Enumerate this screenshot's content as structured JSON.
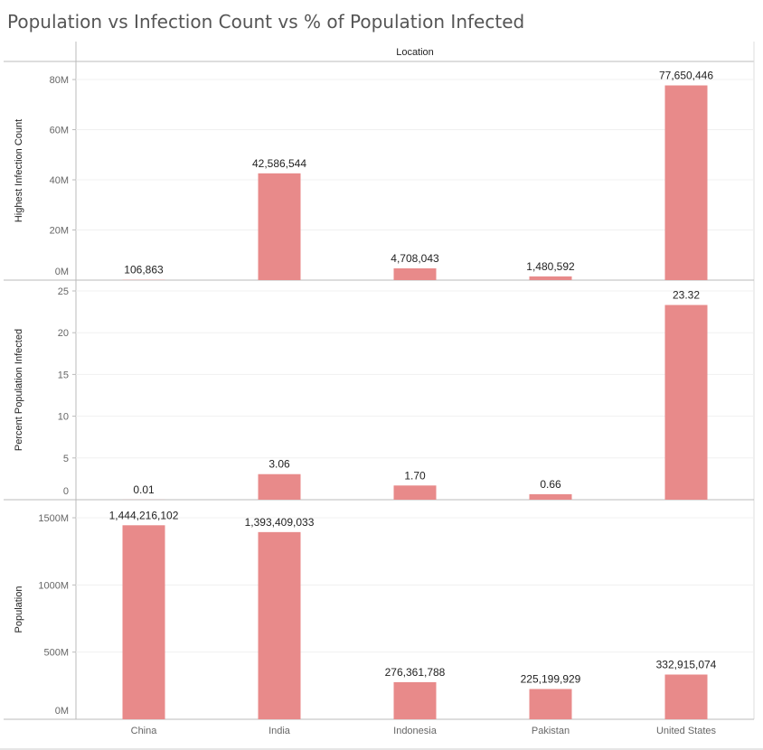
{
  "title": "Population vs Infection Count vs % of Population Infected",
  "chart_data": {
    "type": "bar",
    "column_header": "Location",
    "categories": [
      "China",
      "India",
      "Indonesia",
      "Pakistan",
      "United States"
    ],
    "bar_color": "#e88a8a",
    "panels": [
      {
        "ylabel": "Highest Infection Count",
        "values": [
          106863,
          42586544,
          4708043,
          1480592,
          77650446
        ],
        "labels": [
          "106,863",
          "42,586,544",
          "4,708,043",
          "1,480,592",
          "77,650,446"
        ],
        "ylim": [
          0,
          80000000
        ],
        "ticks": [
          0,
          20000000,
          40000000,
          60000000,
          80000000
        ],
        "tick_labels": [
          "0M",
          "20M",
          "40M",
          "60M",
          "80M"
        ]
      },
      {
        "ylabel": "Percent Population Infected",
        "values": [
          0.01,
          3.06,
          1.7,
          0.66,
          23.32
        ],
        "labels": [
          "0.01",
          "3.06",
          "1.70",
          "0.66",
          "23.32"
        ],
        "ylim": [
          0,
          25
        ],
        "ticks": [
          0,
          5,
          10,
          15,
          20,
          25
        ],
        "tick_labels": [
          "0",
          "5",
          "10",
          "15",
          "20",
          "25"
        ]
      },
      {
        "ylabel": "Population",
        "values": [
          1444216102,
          1393409033,
          276361788,
          225199929,
          332915074
        ],
        "labels": [
          "1,444,216,102",
          "1,393,409,033",
          "276,361,788",
          "225,199,929",
          "332,915,074"
        ],
        "ylim": [
          0,
          1500000000
        ],
        "ticks": [
          0,
          500000000,
          1000000000,
          1500000000
        ],
        "tick_labels": [
          "0M",
          "500M",
          "1000M",
          "1500M"
        ]
      }
    ],
    "grid": true
  }
}
